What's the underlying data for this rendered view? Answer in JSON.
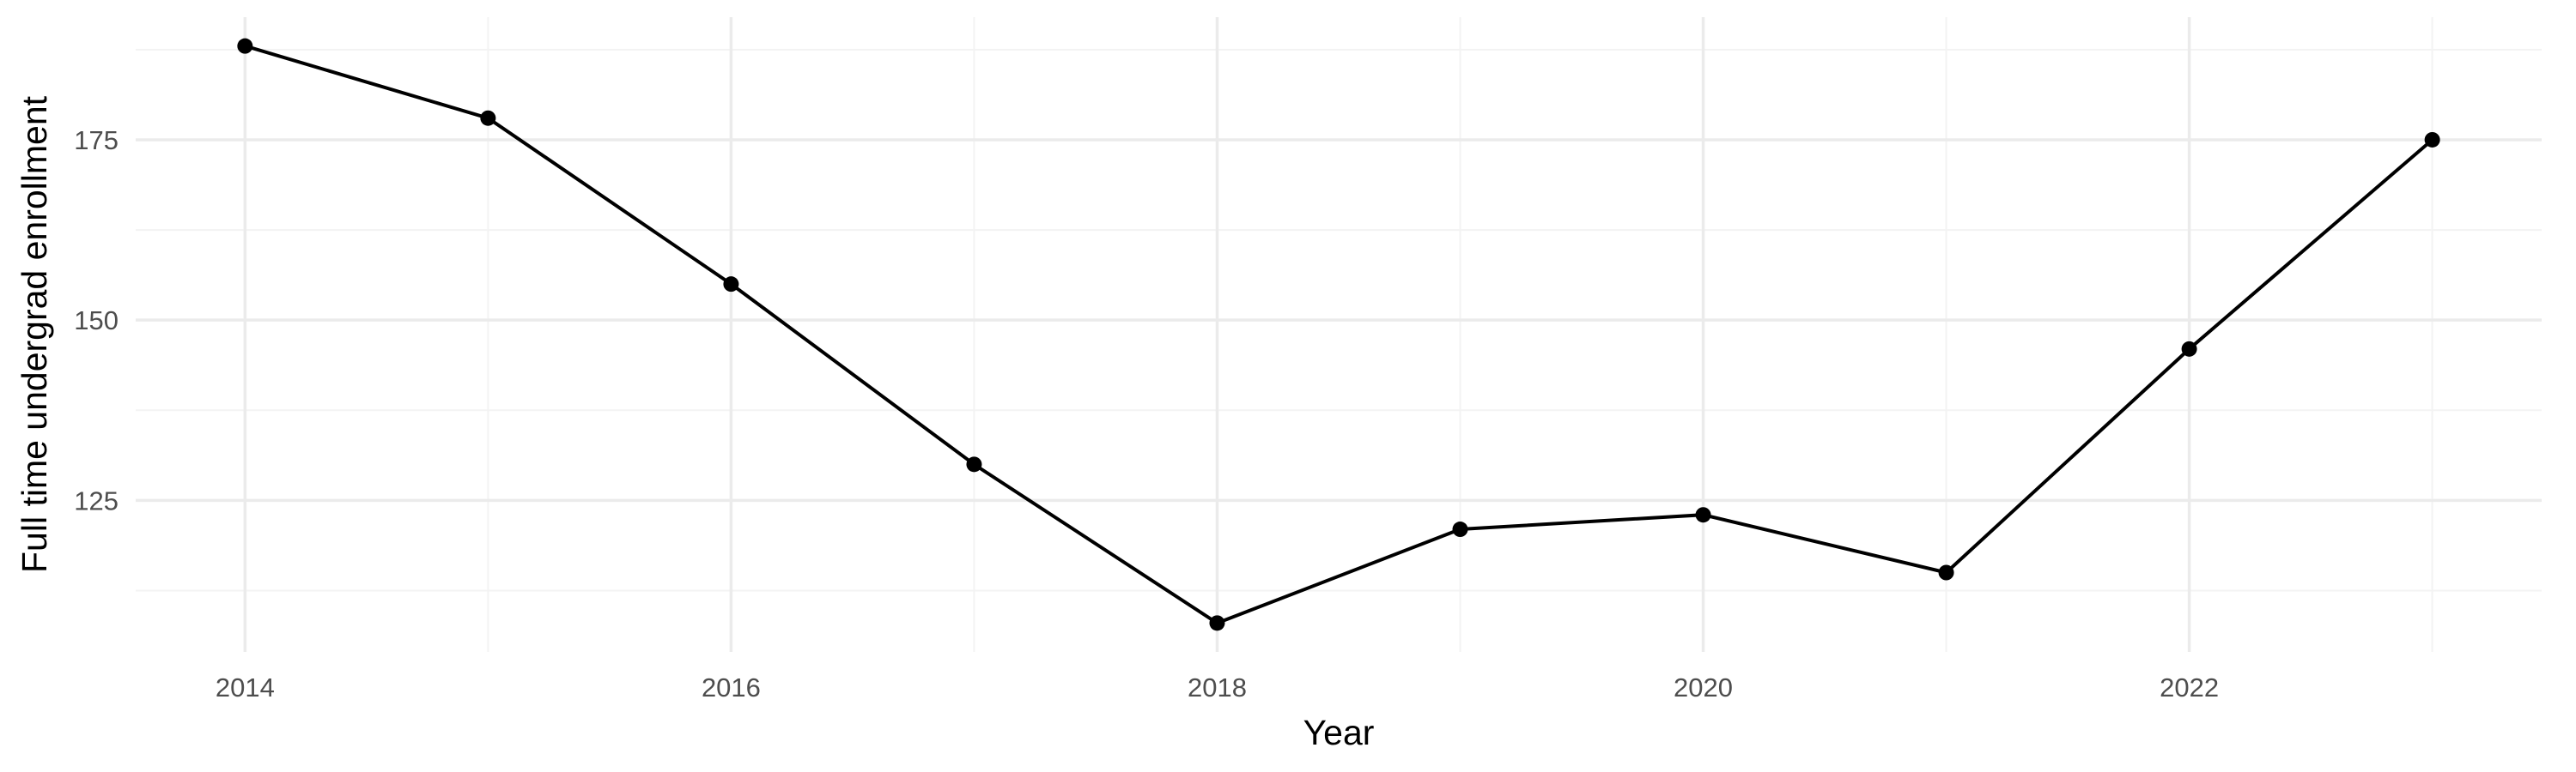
{
  "chart_data": {
    "type": "line",
    "title": "",
    "xlabel": "Year",
    "ylabel": "Full time undergrad enrollment",
    "x": [
      2014,
      2015,
      2016,
      2017,
      2018,
      2019,
      2020,
      2021,
      2022,
      2023
    ],
    "series": [
      {
        "values": [
          188,
          178,
          155,
          130,
          108,
          121,
          123,
          115,
          146,
          175
        ]
      }
    ],
    "xlim": [
      2013.55,
      2023.45
    ],
    "ylim": [
      104,
      192
    ],
    "x_major_ticks": [
      2014,
      2016,
      2018,
      2020,
      2022
    ],
    "x_tick_labels": [
      "2014",
      "2016",
      "2018",
      "2020",
      "2022"
    ],
    "x_minor_ticks": [
      2015,
      2017,
      2019,
      2021,
      2023
    ],
    "y_major_ticks": [
      125,
      150,
      175
    ],
    "y_tick_labels": [
      "125",
      "150",
      "175"
    ],
    "y_minor_ticks": [
      112.5,
      137.5,
      162.5,
      187.5
    ],
    "grid": true,
    "legend": "none",
    "line_color": "#000000",
    "point_color": "#000000",
    "grid_color": "#ebebeb",
    "background": "#ffffff"
  }
}
